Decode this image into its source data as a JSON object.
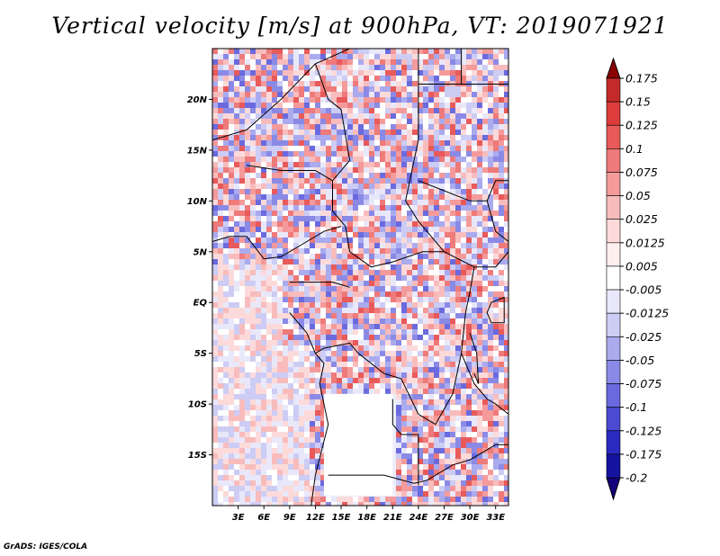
{
  "chart_data": {
    "type": "heatmap",
    "title": "Vertical velocity [m/s] at 900hPa, VT: 2019071921",
    "x_ticks": [
      "3E",
      "6E",
      "9E",
      "12E",
      "15E",
      "18E",
      "21E",
      "24E",
      "27E",
      "30E",
      "33E"
    ],
    "x_tick_values": [
      3,
      6,
      9,
      12,
      15,
      18,
      21,
      24,
      27,
      30,
      33
    ],
    "y_ticks": [
      "20N",
      "15N",
      "10N",
      "5N",
      "EQ",
      "5S",
      "10S",
      "15S"
    ],
    "y_tick_values": [
      20,
      15,
      10,
      5,
      0,
      -5,
      -10,
      -15
    ],
    "xlim": [
      0,
      34.5
    ],
    "ylim": [
      -20,
      25
    ],
    "colorbar": {
      "labels": [
        "0.175",
        "0.15",
        "0.125",
        "0.1",
        "0.075",
        "0.05",
        "0.025",
        "0.0125",
        "0.005",
        "-0.005",
        "-0.0125",
        "-0.025",
        "-0.05",
        "-0.075",
        "-0.1",
        "-0.125",
        "-0.175",
        "-0.2"
      ],
      "colors": [
        "#a01818",
        "#c42a2a",
        "#dc3c3c",
        "#e85a5a",
        "#ee7a7a",
        "#f49a9a",
        "#f8bcbc",
        "#fcdada",
        "#ffeeee",
        "#ffffff",
        "#e8e8fa",
        "#ccccf4",
        "#aaaaee",
        "#8a8ae6",
        "#6a6ade",
        "#4a4ad2",
        "#2a2ac0",
        "#1414a0"
      ],
      "low_arrow_color": "#14007a",
      "high_arrow_color": "#8a0000"
    }
  },
  "footer": "GrADS: IGES/COLA"
}
